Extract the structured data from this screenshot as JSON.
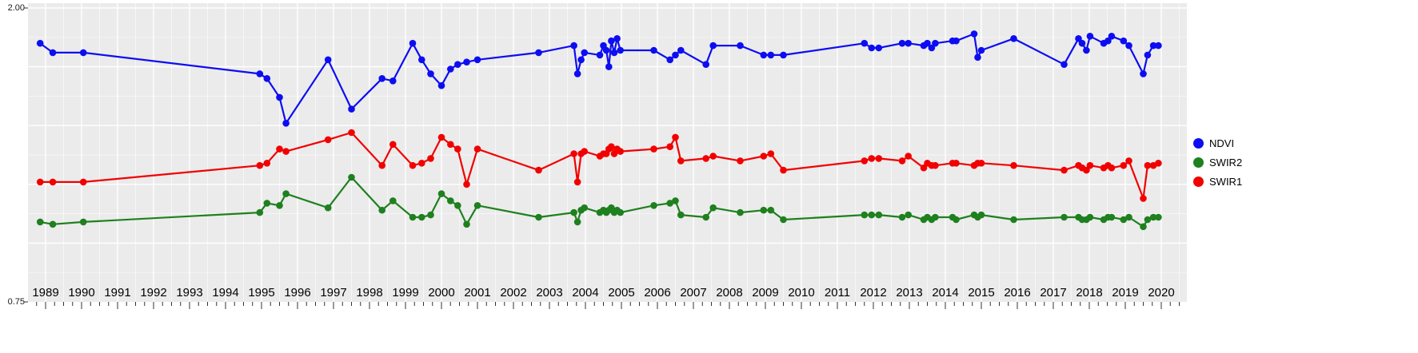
{
  "chart_data": {
    "type": "line",
    "title": "",
    "xlabel": "",
    "ylabel": "",
    "xlim": [
      1988.5,
      2020.7
    ],
    "ylim": [
      0.75,
      2.0
    ],
    "grid": "on",
    "panel_background": "#EBEBEB",
    "gridline_color": "#FFFFFF",
    "legend_position": "right",
    "y_axis": {
      "labels": [
        "2.00",
        "0.75"
      ],
      "label_values": [
        2.0,
        0.75
      ],
      "gridlines_major": [
        1.0,
        1.25,
        1.5,
        1.75,
        2.0
      ],
      "gridlines_minor": [
        0.875,
        1.125,
        1.375,
        1.625,
        1.875
      ]
    },
    "x_ticks": [
      "1989",
      "1990",
      "1991",
      "1992",
      "1993",
      "1994",
      "1995",
      "1996",
      "1997",
      "1998",
      "1999",
      "2000",
      "2001",
      "2002",
      "2003",
      "2004",
      "2005",
      "2006",
      "2007",
      "2008",
      "2009",
      "2010",
      "2011",
      "2012",
      "2013",
      "2014",
      "2015",
      "2016",
      "2017",
      "2018",
      "2019",
      "2020"
    ],
    "x": [
      1988.85,
      1989.2,
      1990.05,
      1994.95,
      1995.15,
      1995.5,
      1995.68,
      1996.85,
      1997.5,
      1998.35,
      1998.65,
      1999.2,
      1999.45,
      1999.7,
      2000.0,
      2000.25,
      2000.45,
      2000.7,
      2001.0,
      2002.7,
      2003.68,
      2003.78,
      2003.88,
      2003.97,
      2004.4,
      2004.5,
      2004.58,
      2004.65,
      2004.72,
      2004.8,
      2004.88,
      2004.97,
      2005.9,
      2006.35,
      2006.5,
      2006.65,
      2007.35,
      2007.55,
      2008.3,
      2008.95,
      2009.15,
      2009.5,
      2011.75,
      2011.95,
      2012.15,
      2012.8,
      2012.97,
      2013.4,
      2013.5,
      2013.62,
      2013.72,
      2014.2,
      2014.3,
      2014.8,
      2014.9,
      2015.0,
      2015.9,
      2017.3,
      2017.7,
      2017.8,
      2017.92,
      2018.02,
      2018.4,
      2018.52,
      2018.62,
      2018.95,
      2019.1,
      2019.5,
      2019.62,
      2019.78,
      2019.92
    ],
    "series": [
      {
        "name": "NDVI",
        "color": "#0D0DF2",
        "values": [
          1.85,
          1.81,
          1.81,
          1.72,
          1.7,
          1.62,
          1.51,
          1.78,
          1.57,
          1.7,
          1.69,
          1.85,
          1.78,
          1.72,
          1.67,
          1.74,
          1.76,
          1.77,
          1.78,
          1.81,
          1.84,
          1.72,
          1.78,
          1.81,
          1.8,
          1.84,
          1.82,
          1.75,
          1.86,
          1.81,
          1.87,
          1.82,
          1.82,
          1.78,
          1.8,
          1.82,
          1.76,
          1.84,
          1.84,
          1.8,
          1.8,
          1.8,
          1.85,
          1.83,
          1.83,
          1.85,
          1.85,
          1.84,
          1.85,
          1.83,
          1.85,
          1.86,
          1.86,
          1.89,
          1.79,
          1.82,
          1.87,
          1.76,
          1.87,
          1.85,
          1.82,
          1.88,
          1.85,
          1.86,
          1.88,
          1.86,
          1.84,
          1.72,
          1.8,
          1.84,
          1.84
        ]
      },
      {
        "name": "SWIR1",
        "color": "#F20000",
        "values": [
          1.26,
          1.26,
          1.26,
          1.33,
          1.34,
          1.4,
          1.39,
          1.44,
          1.47,
          1.33,
          1.42,
          1.33,
          1.34,
          1.36,
          1.45,
          1.42,
          1.4,
          1.25,
          1.4,
          1.31,
          1.38,
          1.26,
          1.38,
          1.39,
          1.37,
          1.38,
          1.38,
          1.4,
          1.41,
          1.38,
          1.4,
          1.39,
          1.4,
          1.41,
          1.45,
          1.35,
          1.36,
          1.37,
          1.35,
          1.37,
          1.38,
          1.31,
          1.35,
          1.36,
          1.36,
          1.35,
          1.37,
          1.32,
          1.34,
          1.33,
          1.33,
          1.34,
          1.34,
          1.33,
          1.34,
          1.34,
          1.33,
          1.31,
          1.33,
          1.32,
          1.31,
          1.33,
          1.32,
          1.33,
          1.32,
          1.33,
          1.35,
          1.19,
          1.33,
          1.33,
          1.34
        ]
      },
      {
        "name": "SWIR2",
        "color": "#1E801E",
        "values": [
          1.09,
          1.08,
          1.09,
          1.13,
          1.17,
          1.16,
          1.21,
          1.15,
          1.28,
          1.14,
          1.18,
          1.11,
          1.11,
          1.12,
          1.21,
          1.18,
          1.16,
          1.08,
          1.16,
          1.11,
          1.13,
          1.09,
          1.14,
          1.15,
          1.13,
          1.14,
          1.13,
          1.14,
          1.15,
          1.13,
          1.14,
          1.13,
          1.16,
          1.17,
          1.18,
          1.12,
          1.11,
          1.15,
          1.13,
          1.14,
          1.14,
          1.1,
          1.12,
          1.12,
          1.12,
          1.11,
          1.12,
          1.1,
          1.11,
          1.1,
          1.11,
          1.11,
          1.1,
          1.12,
          1.11,
          1.12,
          1.1,
          1.11,
          1.11,
          1.1,
          1.1,
          1.11,
          1.1,
          1.11,
          1.11,
          1.1,
          1.11,
          1.07,
          1.1,
          1.11,
          1.11
        ]
      }
    ],
    "legend": [
      {
        "label": "NDVI",
        "color": "#0D0DF2"
      },
      {
        "label": "SWIR2",
        "color": "#1E801E"
      },
      {
        "label": "SWIR1",
        "color": "#F20000"
      }
    ]
  }
}
